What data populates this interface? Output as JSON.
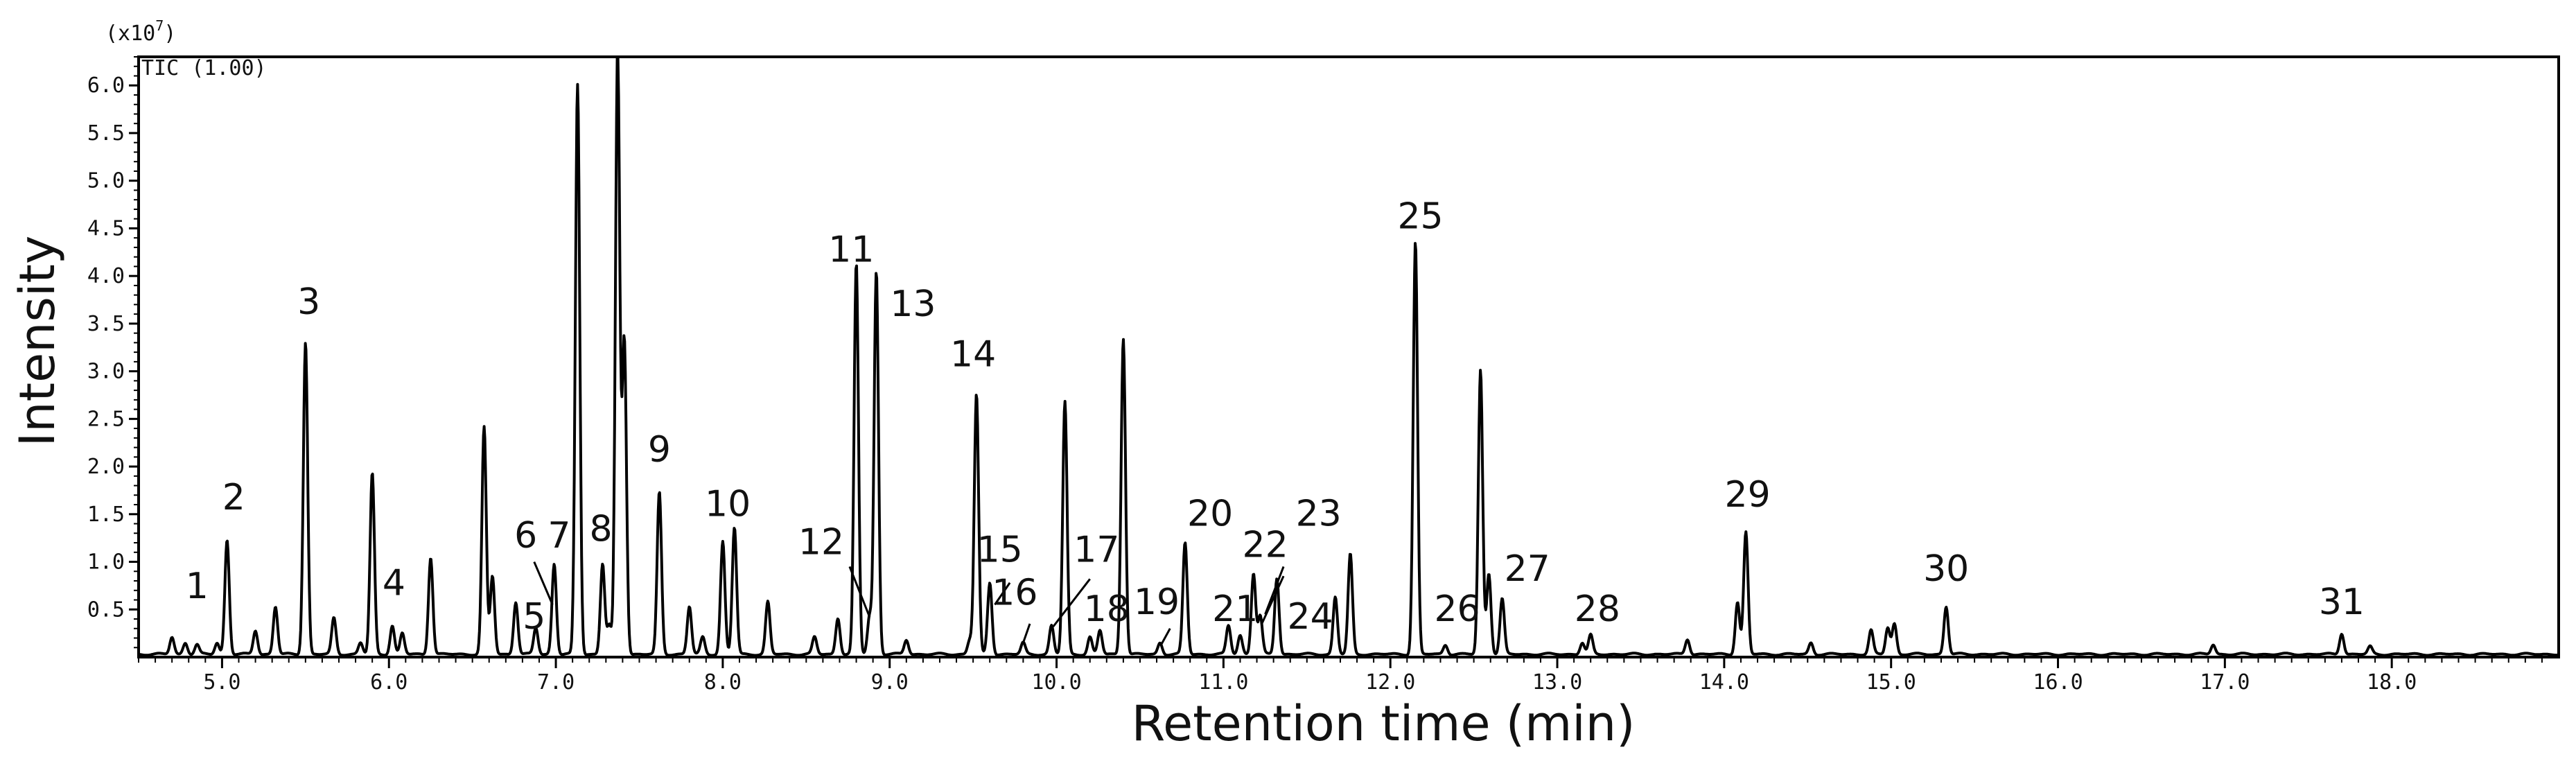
{
  "chart_data": {
    "type": "line",
    "xlabel": "Retention time (min)",
    "ylabel": "Intensity",
    "scale_label": "(x10",
    "scale_exp": "7",
    "trace_label": "TIC (1.00)",
    "xlim": [
      4.5,
      19.0
    ],
    "ylim": [
      0,
      6.3
    ],
    "x_ticks": [
      "5.0",
      "6.0",
      "7.0",
      "8.0",
      "9.0",
      "10.0",
      "11.0",
      "12.0",
      "13.0",
      "14.0",
      "15.0",
      "16.0",
      "17.0",
      "18.0"
    ],
    "y_ticks": [
      "0.5",
      "1.0",
      "1.5",
      "2.0",
      "2.5",
      "3.0",
      "3.5",
      "4.0",
      "4.5",
      "5.0",
      "5.5",
      "6.0"
    ],
    "baseline": 0.03,
    "peaks": [
      {
        "x": 4.7,
        "y": 0.18
      },
      {
        "x": 4.78,
        "y": 0.12
      },
      {
        "x": 4.85,
        "y": 0.1
      },
      {
        "x": 4.97,
        "y": 0.12
      },
      {
        "x": 5.03,
        "y": 1.2
      },
      {
        "x": 5.2,
        "y": 0.25
      },
      {
        "x": 5.32,
        "y": 0.5
      },
      {
        "x": 5.5,
        "y": 3.28
      },
      {
        "x": 5.67,
        "y": 0.38
      },
      {
        "x": 5.83,
        "y": 0.12
      },
      {
        "x": 5.9,
        "y": 1.9
      },
      {
        "x": 6.02,
        "y": 0.3
      },
      {
        "x": 6.08,
        "y": 0.22
      },
      {
        "x": 6.25,
        "y": 1.02
      },
      {
        "x": 6.57,
        "y": 2.38
      },
      {
        "x": 6.62,
        "y": 0.82
      },
      {
        "x": 6.76,
        "y": 0.55
      },
      {
        "x": 6.88,
        "y": 0.28
      },
      {
        "x": 6.99,
        "y": 0.95
      },
      {
        "x": 7.13,
        "y": 5.98
      },
      {
        "x": 7.28,
        "y": 0.95
      },
      {
        "x": 7.32,
        "y": 0.3
      },
      {
        "x": 7.37,
        "y": 6.35
      },
      {
        "x": 7.41,
        "y": 3.3
      },
      {
        "x": 7.62,
        "y": 1.7
      },
      {
        "x": 7.8,
        "y": 0.5
      },
      {
        "x": 7.88,
        "y": 0.18
      },
      {
        "x": 8.0,
        "y": 1.18
      },
      {
        "x": 8.07,
        "y": 1.33
      },
      {
        "x": 8.27,
        "y": 0.55
      },
      {
        "x": 8.55,
        "y": 0.18
      },
      {
        "x": 8.69,
        "y": 0.38
      },
      {
        "x": 8.8,
        "y": 4.1
      },
      {
        "x": 8.88,
        "y": 0.4
      },
      {
        "x": 8.92,
        "y": 4.02
      },
      {
        "x": 9.1,
        "y": 0.15
      },
      {
        "x": 9.48,
        "y": 0.15
      },
      {
        "x": 9.52,
        "y": 2.73
      },
      {
        "x": 9.6,
        "y": 0.75
      },
      {
        "x": 9.8,
        "y": 0.12
      },
      {
        "x": 9.97,
        "y": 0.3
      },
      {
        "x": 10.05,
        "y": 2.65
      },
      {
        "x": 10.2,
        "y": 0.18
      },
      {
        "x": 10.26,
        "y": 0.25
      },
      {
        "x": 10.4,
        "y": 3.32
      },
      {
        "x": 10.62,
        "y": 0.12
      },
      {
        "x": 10.77,
        "y": 1.17
      },
      {
        "x": 11.03,
        "y": 0.3
      },
      {
        "x": 11.1,
        "y": 0.2
      },
      {
        "x": 11.18,
        "y": 0.85
      },
      {
        "x": 11.22,
        "y": 0.4
      },
      {
        "x": 11.32,
        "y": 0.8
      },
      {
        "x": 11.67,
        "y": 0.6
      },
      {
        "x": 11.76,
        "y": 1.05
      },
      {
        "x": 12.15,
        "y": 4.33
      },
      {
        "x": 12.33,
        "y": 0.1
      },
      {
        "x": 12.54,
        "y": 2.98
      },
      {
        "x": 12.59,
        "y": 0.85
      },
      {
        "x": 12.67,
        "y": 0.58
      },
      {
        "x": 13.15,
        "y": 0.12
      },
      {
        "x": 13.2,
        "y": 0.2
      },
      {
        "x": 13.78,
        "y": 0.16
      },
      {
        "x": 14.08,
        "y": 0.55
      },
      {
        "x": 14.13,
        "y": 1.28
      },
      {
        "x": 14.52,
        "y": 0.12
      },
      {
        "x": 14.88,
        "y": 0.25
      },
      {
        "x": 14.98,
        "y": 0.28
      },
      {
        "x": 15.02,
        "y": 0.32
      },
      {
        "x": 15.33,
        "y": 0.5
      },
      {
        "x": 16.93,
        "y": 0.1
      },
      {
        "x": 17.7,
        "y": 0.22
      },
      {
        "x": 17.87,
        "y": 0.08
      }
    ],
    "annotations": [
      {
        "text": "1",
        "x": 4.85,
        "y": 0.62
      },
      {
        "text": "2",
        "x": 5.07,
        "y": 1.55
      },
      {
        "text": "3",
        "x": 5.52,
        "y": 3.6
      },
      {
        "text": "4",
        "x": 6.03,
        "y": 0.65
      },
      {
        "text": "5",
        "x": 6.87,
        "y": 0.3
      },
      {
        "text": "6",
        "x": 6.82,
        "y": 1.15
      },
      {
        "text": "7",
        "x": 7.02,
        "y": 1.15
      },
      {
        "text": "8",
        "x": 7.27,
        "y": 1.22
      },
      {
        "text": "9",
        "x": 7.62,
        "y": 2.05
      },
      {
        "text": "10",
        "x": 8.03,
        "y": 1.48
      },
      {
        "text": "11",
        "x": 8.77,
        "y": 4.15
      },
      {
        "text": "12",
        "x": 8.59,
        "y": 1.08
      },
      {
        "text": "13",
        "x": 9.14,
        "y": 3.58
      },
      {
        "text": "14",
        "x": 9.5,
        "y": 3.05
      },
      {
        "text": "15",
        "x": 9.66,
        "y": 1.0
      },
      {
        "text": "16",
        "x": 9.75,
        "y": 0.55
      },
      {
        "text": "17",
        "x": 10.24,
        "y": 1.0
      },
      {
        "text": "18",
        "x": 10.3,
        "y": 0.38
      },
      {
        "text": "19",
        "x": 10.6,
        "y": 0.45
      },
      {
        "text": "20",
        "x": 10.92,
        "y": 1.38
      },
      {
        "text": "21",
        "x": 11.07,
        "y": 0.38
      },
      {
        "text": "22",
        "x": 11.25,
        "y": 1.05
      },
      {
        "text": "23",
        "x": 11.57,
        "y": 1.38
      },
      {
        "text": "24",
        "x": 11.52,
        "y": 0.3
      },
      {
        "text": "25",
        "x": 12.18,
        "y": 4.5
      },
      {
        "text": "26",
        "x": 12.4,
        "y": 0.38
      },
      {
        "text": "27",
        "x": 12.82,
        "y": 0.8
      },
      {
        "text": "28",
        "x": 13.24,
        "y": 0.38
      },
      {
        "text": "29",
        "x": 14.14,
        "y": 1.58
      },
      {
        "text": "30",
        "x": 15.33,
        "y": 0.8
      },
      {
        "text": "31",
        "x": 17.7,
        "y": 0.45
      }
    ],
    "leader_lines": [
      {
        "from": [
          6.87,
          1.0
        ],
        "to": [
          6.98,
          0.55
        ]
      },
      {
        "from": [
          8.76,
          0.95
        ],
        "to": [
          8.88,
          0.42
        ]
      },
      {
        "from": [
          9.72,
          0.78
        ],
        "to": [
          9.63,
          0.55
        ]
      },
      {
        "from": [
          9.84,
          0.35
        ],
        "to": [
          9.8,
          0.15
        ]
      },
      {
        "from": [
          10.2,
          0.82
        ],
        "to": [
          9.98,
          0.32
        ]
      },
      {
        "from": [
          10.68,
          0.3
        ],
        "to": [
          10.63,
          0.14
        ]
      },
      {
        "from": [
          11.36,
          0.95
        ],
        "to": [
          11.25,
          0.45
        ]
      },
      {
        "from": [
          11.36,
          0.85
        ],
        "to": [
          11.23,
          0.35
        ]
      }
    ]
  }
}
